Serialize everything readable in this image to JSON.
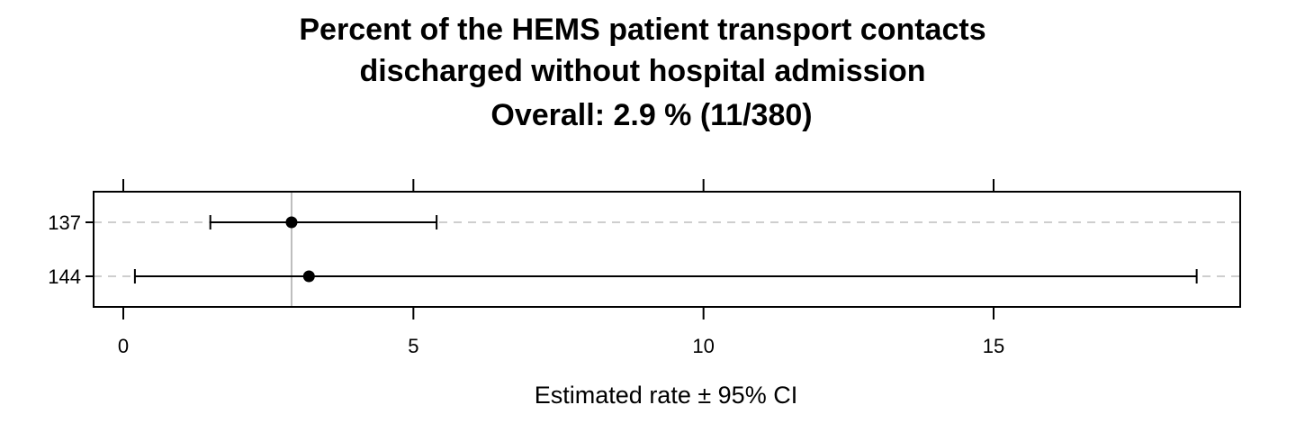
{
  "chart_data": {
    "type": "scatter",
    "title_lines": [
      "Percent of the HEMS patient transport contacts",
      "discharged without hospital admission",
      "Overall:  2.9 %  (11/380)"
    ],
    "xlabel": "Estimated rate ±  95% CI",
    "ylabel": "",
    "xlim": [
      0,
      19
    ],
    "x_ticks": [
      0,
      5,
      10,
      15
    ],
    "x_tick_labels": [
      "0",
      "5",
      "10",
      "15"
    ],
    "overall_rate": 2.9,
    "grid": "dashed horizontal lines at each category",
    "categories": [
      "137",
      "144"
    ],
    "estimates": [
      2.9,
      3.2
    ],
    "ci_lower": [
      1.5,
      0.2
    ],
    "ci_upper": [
      5.4,
      18.5
    ],
    "colors": {
      "points": "#000000",
      "gridlines": "#bdbdbd",
      "reference_line": "#bdbdbd"
    }
  }
}
